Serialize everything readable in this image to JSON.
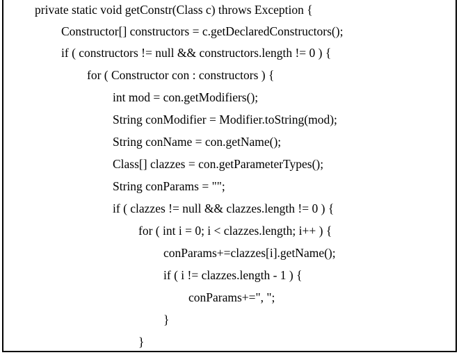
{
  "code": {
    "lines": [
      {
        "indent": 0,
        "text": "private static void getConstr(Class c) throws Exception {"
      },
      {
        "indent": 1,
        "text": "Constructor[] constructors = c.getDeclaredConstructors();"
      },
      {
        "indent": 1,
        "text": "if ( constructors != null && constructors.length != 0 ) {"
      },
      {
        "indent": 2,
        "text": "for ( Constructor con : constructors ) {"
      },
      {
        "indent": 3,
        "text": "int mod = con.getModifiers();"
      },
      {
        "indent": 3,
        "text": "String conModifier = Modifier.toString(mod);"
      },
      {
        "indent": 3,
        "text": "String conName = con.getName();"
      },
      {
        "indent": 3,
        "text": "Class[] clazzes = con.getParameterTypes();"
      },
      {
        "indent": 3,
        "text": "String conParams = \"\";"
      },
      {
        "indent": 3,
        "text": "if ( clazzes != null && clazzes.length != 0 ) {"
      },
      {
        "indent": 4,
        "text": "for ( int i = 0; i < clazzes.length; i++ ) {"
      },
      {
        "indent": 5,
        "text": "conParams+=clazzes[i].getName();"
      },
      {
        "indent": 5,
        "text": "if ( i != clazzes.length - 1 ) {"
      },
      {
        "indent": 6,
        "text": "conParams+=\", \";"
      },
      {
        "indent": 5,
        "text": "}"
      },
      {
        "indent": 4,
        "text": "}"
      }
    ]
  }
}
